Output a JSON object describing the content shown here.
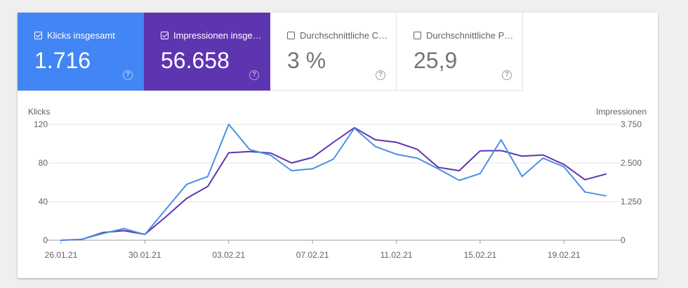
{
  "metrics": [
    {
      "label": "Klicks insgesamt",
      "value": "1.716",
      "checked": true,
      "color": "#4285f4"
    },
    {
      "label": "Impressionen insgesamt",
      "value": "56.658",
      "checked": true,
      "color": "#5e35b1"
    },
    {
      "label": "Durchschnittliche CTR",
      "value": "3 %",
      "checked": false,
      "color": "#ffffff"
    },
    {
      "label": "Durchschnittliche Position",
      "value": "25,9",
      "checked": false,
      "color": "#ffffff"
    }
  ],
  "help_icon": "question-mark-circle-icon",
  "chart_data": {
    "type": "line",
    "x": [
      "26.01.21",
      "27.01.21",
      "28.01.21",
      "29.01.21",
      "30.01.21",
      "31.01.21",
      "01.02.21",
      "02.02.21",
      "03.02.21",
      "04.02.21",
      "05.02.21",
      "06.02.21",
      "07.02.21",
      "08.02.21",
      "09.02.21",
      "10.02.21",
      "11.02.21",
      "12.02.21",
      "13.02.21",
      "14.02.21",
      "15.02.21",
      "16.02.21",
      "17.02.21",
      "18.02.21",
      "19.02.21",
      "20.02.21",
      "21.02.21"
    ],
    "xticks": [
      "26.01.21",
      "30.01.21",
      "03.02.21",
      "07.02.21",
      "11.02.21",
      "15.02.21",
      "19.02.21"
    ],
    "y_left": {
      "label": "Klicks",
      "ticks": [
        "0",
        "40",
        "80",
        "120"
      ],
      "range": [
        0,
        120
      ]
    },
    "y_right": {
      "label": "Impressionen",
      "ticks": [
        "0",
        "1.250",
        "2.500",
        "3.750"
      ],
      "range": [
        0,
        3750
      ]
    },
    "series": [
      {
        "name": "Klicks",
        "axis": "left",
        "color": "#4a8fe7",
        "values": [
          0,
          1,
          7,
          12,
          6,
          32,
          58,
          66,
          120,
          94,
          88,
          72,
          74,
          84,
          116,
          97,
          89,
          85,
          74,
          62,
          69,
          104,
          66,
          85,
          76,
          50,
          46
        ]
      },
      {
        "name": "Impressionen",
        "axis": "right",
        "color": "#5e35b1",
        "values": [
          0,
          30,
          250,
          310,
          190,
          760,
          1360,
          1740,
          2830,
          2870,
          2820,
          2500,
          2680,
          3170,
          3640,
          3250,
          3170,
          2940,
          2360,
          2250,
          2890,
          2900,
          2720,
          2760,
          2450,
          1960,
          2140
        ]
      }
    ],
    "grid": true,
    "legend": "none"
  }
}
